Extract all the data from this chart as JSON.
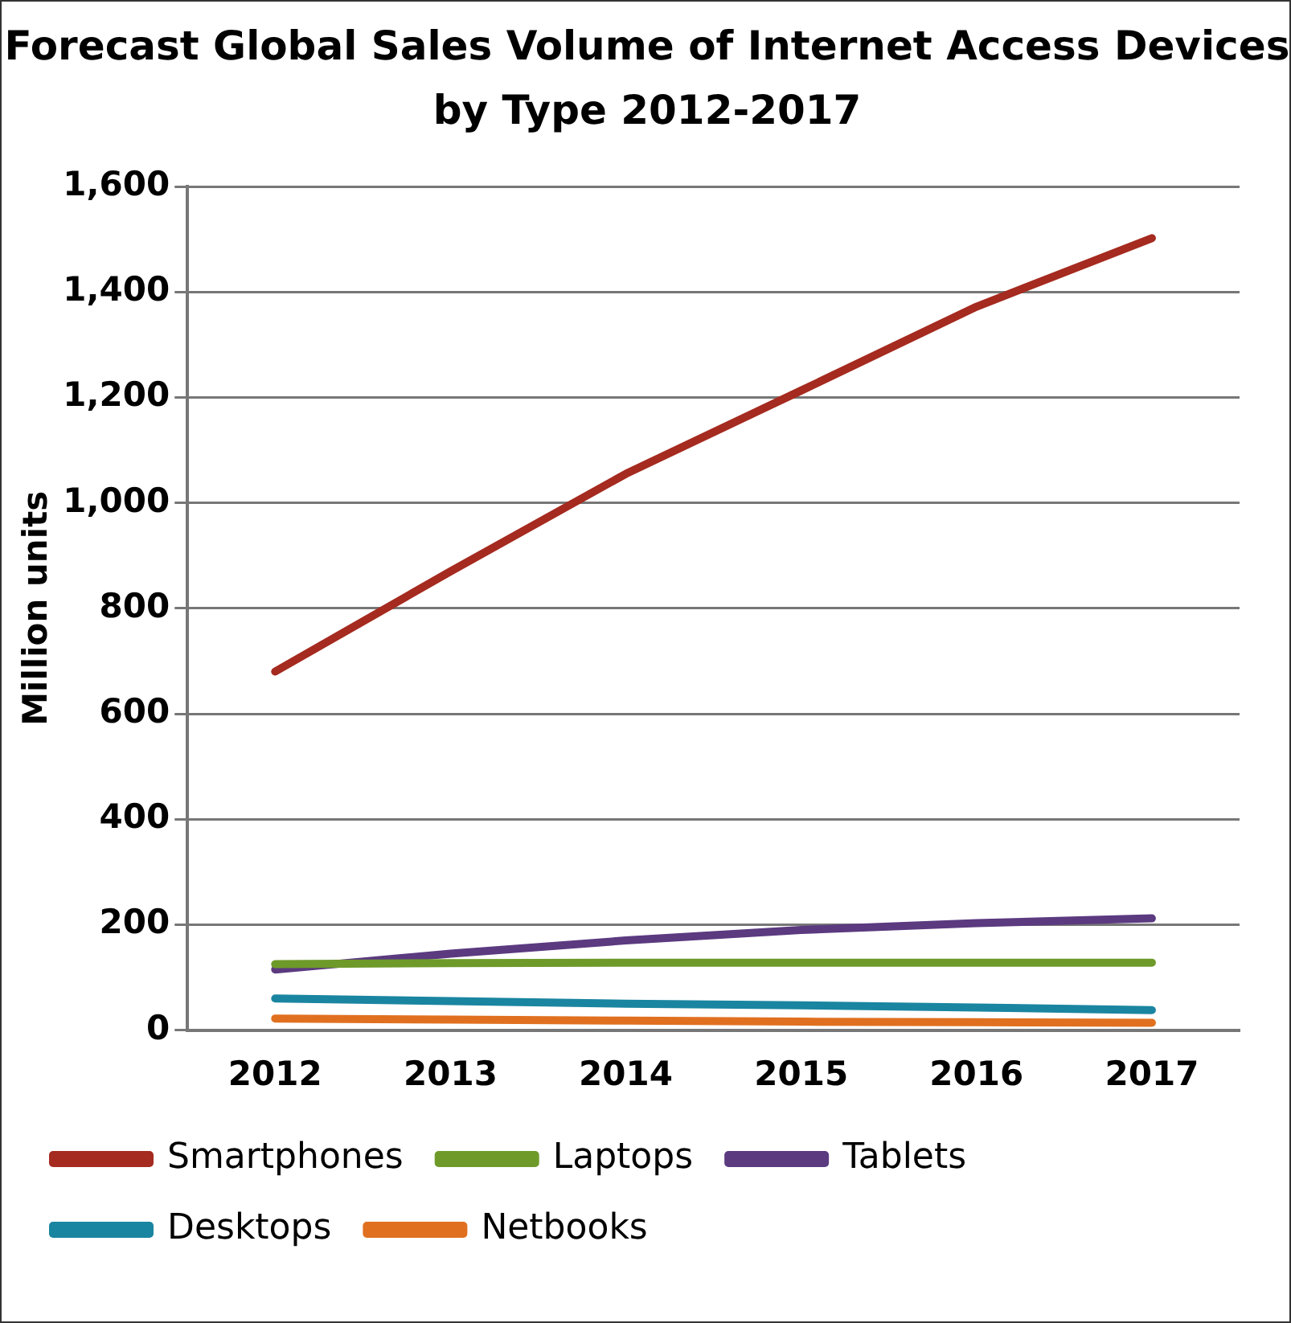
{
  "chart_data": {
    "type": "line",
    "title": "Forecast Global Sales Volume of Internet Access Devices by Type 2012-2017",
    "ylabel": "Million units",
    "categories": [
      "2012",
      "2013",
      "2014",
      "2015",
      "2016",
      "2017"
    ],
    "series": [
      {
        "name": "Smartphones",
        "color": "#a52a1f",
        "values": [
          680,
          870,
          1055,
          1213,
          1372,
          1502
        ]
      },
      {
        "name": "Laptops",
        "color": "#6e9a2a",
        "values": [
          125,
          127,
          128,
          128,
          128,
          128
        ]
      },
      {
        "name": "Tablets",
        "color": "#5b3a80",
        "values": [
          115,
          145,
          170,
          190,
          203,
          212
        ]
      },
      {
        "name": "Desktops",
        "color": "#1a85a0",
        "values": [
          60,
          55,
          50,
          47,
          43,
          38
        ]
      },
      {
        "name": "Netbooks",
        "color": "#e07020",
        "values": [
          22,
          20,
          18,
          16,
          15,
          14
        ]
      }
    ],
    "ylim": [
      0,
      1600
    ],
    "yticks": [
      {
        "value": 0,
        "label": "0"
      },
      {
        "value": 200,
        "label": "200"
      },
      {
        "value": 400,
        "label": "400"
      },
      {
        "value": 600,
        "label": "600"
      },
      {
        "value": 800,
        "label": "800"
      },
      {
        "value": 1000,
        "label": "1,000"
      },
      {
        "value": 1200,
        "label": "1,200"
      },
      {
        "value": 1400,
        "label": "1,400"
      },
      {
        "value": 1600,
        "label": "1,600"
      }
    ],
    "grid": "y",
    "legend": "bottom",
    "marker": "none",
    "line_style": "solid"
  }
}
